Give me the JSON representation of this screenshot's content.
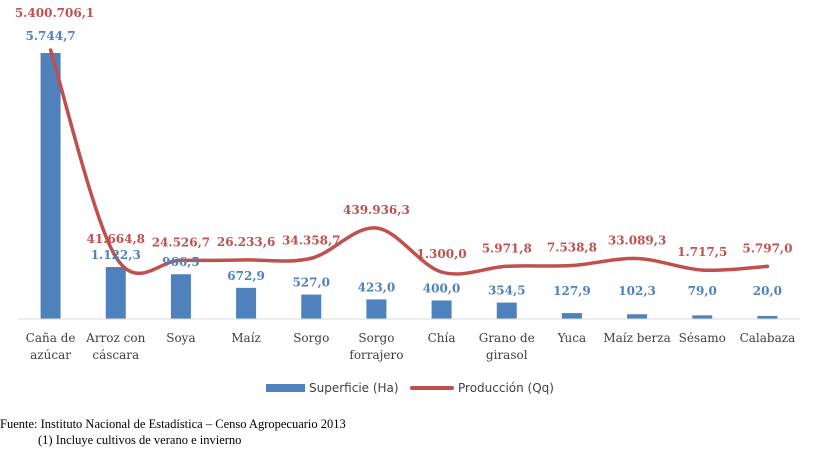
{
  "chart_data": {
    "type": "bar",
    "categories": [
      [
        "Caña de",
        "azúcar"
      ],
      [
        "Arroz con",
        "cáscara"
      ],
      [
        "Soya"
      ],
      [
        "Maíz"
      ],
      [
        "Sorgo"
      ],
      [
        "Sorgo",
        "forrajero"
      ],
      [
        "Chía"
      ],
      [
        "Grano de",
        "girasol"
      ],
      [
        "Yuca"
      ],
      [
        "Maíz berza"
      ],
      [
        "Sésamo"
      ],
      [
        "Calabaza"
      ]
    ],
    "series": [
      {
        "name": "Superficie (Ha)",
        "type": "bar",
        "color": "#4f81bd",
        "values": [
          5744.7,
          1122.3,
          966.5,
          672.9,
          527.0,
          423.0,
          400.0,
          354.5,
          127.9,
          102.3,
          79.0,
          20.0
        ],
        "labels": [
          "5.744,7",
          "1.122,3",
          "966,5",
          "672,9",
          "527,0",
          "423,0",
          "400,0",
          "354,5",
          "127,9",
          "102,3",
          "79,0",
          "20,0"
        ]
      },
      {
        "name": "Producción (Qq)",
        "type": "line",
        "color": "#c0504d",
        "values": [
          5400706.1,
          41664.8,
          24526.7,
          26233.6,
          34358.7,
          439936.3,
          1300.0,
          5971.8,
          7538.8,
          33089.3,
          1717.5,
          5797.0
        ],
        "labels": [
          "5.400.706,1",
          "41.664,8",
          "24.526,7",
          "26.233,6",
          "34.358,7",
          "439.936,3",
          "1.300,0",
          "5.971,8",
          "7.538,8",
          "33.089,3",
          "1.717,5",
          "5.797,0"
        ]
      }
    ],
    "legend_position": "bottom",
    "grid": false
  },
  "footer": {
    "source": "Fuente: Instituto Nacional de Estadística – Censo Agropecuario 2013",
    "note": "(1) Incluye cultivos  de verano e invierno"
  }
}
